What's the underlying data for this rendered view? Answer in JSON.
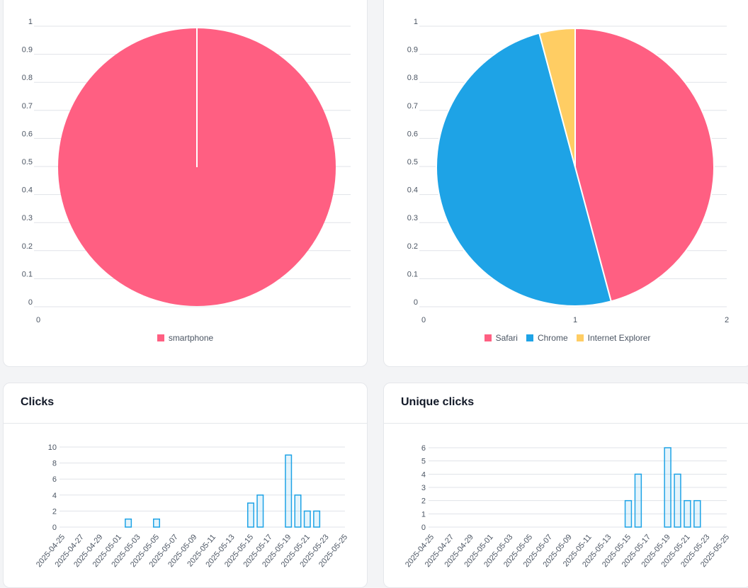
{
  "colors": {
    "pink": "#ff5f82",
    "blue": "#1ea3e6",
    "yellow": "#ffcd63",
    "grid": "#e0e3e8",
    "axis_text": "#4b5563"
  },
  "devices_card": {
    "legend": [
      {
        "label": "smartphone",
        "color": "#ff5f82",
        "icon": "square"
      }
    ]
  },
  "browsers_card": {
    "legend": [
      {
        "label": "Safari",
        "color": "#ff5f82",
        "icon": "square"
      },
      {
        "label": "Chrome",
        "color": "#1ea3e6",
        "icon": "square"
      },
      {
        "label": "Internet Explorer",
        "color": "#ffcd63",
        "icon": "square"
      }
    ]
  },
  "clicks_card": {
    "title": "Clicks"
  },
  "unique_clicks_card": {
    "title": "Unique clicks"
  },
  "chart_data": [
    {
      "type": "pie",
      "title": "",
      "labels": [
        "smartphone"
      ],
      "values": [
        1
      ],
      "colors": [
        "#ff5f82"
      ],
      "axis_y_ticks": [
        "0",
        "0.1",
        "0.2",
        "0.3",
        "0.4",
        "0.5",
        "0.6",
        "0.7",
        "0.8",
        "0.9",
        "1"
      ],
      "axis_x_ticks": [
        "0"
      ],
      "legend_position": "bottom"
    },
    {
      "type": "pie",
      "title": "",
      "labels": [
        "Safari",
        "Chrome",
        "Internet Explorer"
      ],
      "values": [
        11,
        12,
        1
      ],
      "colors": [
        "#ff5f82",
        "#1ea3e6",
        "#ffcd63"
      ],
      "axis_y_ticks": [
        "0",
        "0.1",
        "0.2",
        "0.3",
        "0.4",
        "0.5",
        "0.6",
        "0.7",
        "0.8",
        "0.9",
        "1"
      ],
      "axis_x_ticks": [
        "0",
        "1",
        "2"
      ],
      "legend_position": "bottom"
    },
    {
      "type": "bar",
      "title": "Clicks",
      "categories": [
        "2025-04-25",
        "2025-04-26",
        "2025-04-27",
        "2025-04-28",
        "2025-04-29",
        "2025-04-30",
        "2025-05-01",
        "2025-05-02",
        "2025-05-03",
        "2025-05-04",
        "2025-05-05",
        "2025-05-06",
        "2025-05-07",
        "2025-05-08",
        "2025-05-09",
        "2025-05-10",
        "2025-05-11",
        "2025-05-12",
        "2025-05-13",
        "2025-05-14",
        "2025-05-15",
        "2025-05-16",
        "2025-05-17",
        "2025-05-18",
        "2025-05-19",
        "2025-05-20",
        "2025-05-21",
        "2025-05-22",
        "2025-05-23",
        "2025-05-24",
        "2025-05-25"
      ],
      "values": [
        0,
        0,
        0,
        0,
        0,
        0,
        0,
        1,
        0,
        0,
        1,
        0,
        0,
        0,
        0,
        0,
        0,
        0,
        0,
        0,
        3,
        4,
        0,
        0,
        9,
        4,
        2,
        2,
        0,
        0,
        0
      ],
      "tick_labels": [
        "2025-04-25",
        "2025-04-27",
        "2025-04-29",
        "2025-05-01",
        "2025-05-03",
        "2025-05-05",
        "2025-05-07",
        "2025-05-09",
        "2025-05-11",
        "2025-05-13",
        "2025-05-15",
        "2025-05-17",
        "2025-05-19",
        "2025-05-21",
        "2025-05-23",
        "2025-05-25"
      ],
      "y_ticks": [
        "0",
        "2",
        "4",
        "6",
        "8",
        "10"
      ],
      "ylim": [
        0,
        10
      ],
      "color": "#1ea3e6"
    },
    {
      "type": "bar",
      "title": "Unique clicks",
      "categories": [
        "2025-04-25",
        "2025-04-26",
        "2025-04-27",
        "2025-04-28",
        "2025-04-29",
        "2025-04-30",
        "2025-05-01",
        "2025-05-02",
        "2025-05-03",
        "2025-05-04",
        "2025-05-05",
        "2025-05-06",
        "2025-05-07",
        "2025-05-08",
        "2025-05-09",
        "2025-05-10",
        "2025-05-11",
        "2025-05-12",
        "2025-05-13",
        "2025-05-14",
        "2025-05-15",
        "2025-05-16",
        "2025-05-17",
        "2025-05-18",
        "2025-05-19",
        "2025-05-20",
        "2025-05-21",
        "2025-05-22",
        "2025-05-23",
        "2025-05-24",
        "2025-05-25"
      ],
      "values": [
        0,
        0,
        0,
        0,
        0,
        0,
        0,
        0,
        0,
        0,
        0,
        0,
        0,
        0,
        0,
        0,
        0,
        0,
        0,
        0,
        2,
        4,
        0,
        0,
        6,
        4,
        2,
        2,
        0,
        0,
        0
      ],
      "tick_labels": [
        "2025-04-25",
        "2025-04-27",
        "2025-04-29",
        "2025-05-01",
        "2025-05-03",
        "2025-05-05",
        "2025-05-07",
        "2025-05-09",
        "2025-05-11",
        "2025-05-13",
        "2025-05-15",
        "2025-05-17",
        "2025-05-19",
        "2025-05-21",
        "2025-05-23",
        "2025-05-25"
      ],
      "y_ticks": [
        "0",
        "1",
        "2",
        "3",
        "4",
        "5",
        "6"
      ],
      "ylim": [
        0,
        6
      ],
      "color": "#1ea3e6"
    }
  ]
}
